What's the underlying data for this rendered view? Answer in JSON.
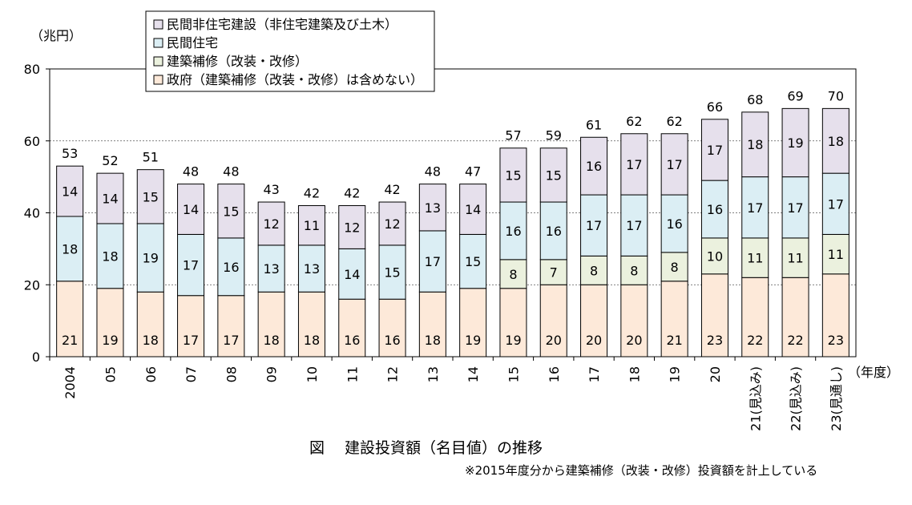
{
  "chart_data": {
    "type": "bar",
    "stacked": true,
    "title": "図　 建設投資額（名目値）の推移",
    "note": "※2015年度分から建築補修（改装・改修）投資額を計上している",
    "ylabel": "（兆円）",
    "xlabel_suffix": "（年度）",
    "ylim": [
      0,
      80
    ],
    "yticks": [
      0,
      20,
      40,
      60,
      80
    ],
    "grid": true,
    "legend_position": "top-center",
    "categories": [
      "2004",
      "05",
      "06",
      "07",
      "08",
      "09",
      "10",
      "11",
      "12",
      "13",
      "14",
      "15",
      "16",
      "17",
      "18",
      "19",
      "20",
      "21(見込み)",
      "22(見込み)",
      "23(見通し)"
    ],
    "series": [
      {
        "name": "政府（建築補修（改装・改修）は含めない）",
        "color": "#fde9d9",
        "values": [
          21,
          19,
          18,
          17,
          17,
          18,
          18,
          16,
          16,
          18,
          19,
          19,
          20,
          20,
          20,
          21,
          23,
          22,
          22,
          23
        ]
      },
      {
        "name": "建築補修（改装・改修）",
        "color": "#ebf1de",
        "values": [
          0,
          0,
          0,
          0,
          0,
          0,
          0,
          0,
          0,
          0,
          0,
          8,
          7,
          8,
          8,
          8,
          10,
          11,
          11,
          11
        ]
      },
      {
        "name": "民間住宅",
        "color": "#dbeef4",
        "values": [
          18,
          18,
          19,
          17,
          16,
          13,
          13,
          14,
          15,
          17,
          15,
          16,
          16,
          17,
          17,
          16,
          16,
          17,
          17,
          17
        ]
      },
      {
        "name": "民間非住宅建設（非住宅建築及び土木）",
        "color": "#e6e0ec",
        "values": [
          14,
          14,
          15,
          14,
          15,
          12,
          11,
          12,
          12,
          13,
          14,
          15,
          15,
          16,
          17,
          17,
          17,
          18,
          19,
          18
        ]
      }
    ],
    "totals": [
      53,
      52,
      51,
      48,
      48,
      43,
      42,
      42,
      42,
      48,
      47,
      57,
      59,
      61,
      62,
      62,
      66,
      68,
      69,
      70
    ]
  }
}
